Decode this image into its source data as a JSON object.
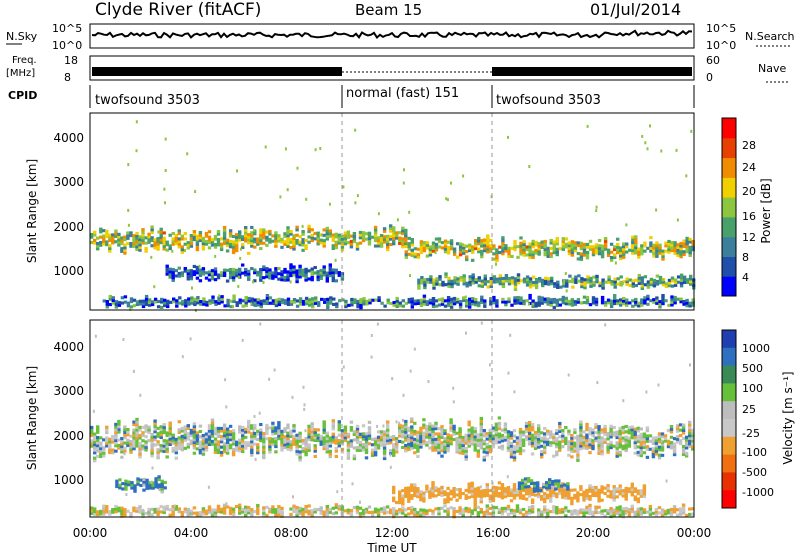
{
  "header": {
    "station": "Clyde River (fitACF)",
    "beam": "Beam 15",
    "date": "01/Jul/2014"
  },
  "noise_panel": {
    "left_label": "N.Sky",
    "right_label": "N.Search",
    "left_ticks": [
      "10^5",
      "10^0"
    ],
    "right_ticks": [
      "10^5",
      "10^0"
    ]
  },
  "freq_panel": {
    "left_label_1": "Freq.",
    "left_label_2": "[MHz]",
    "right_label": "Nave",
    "left_ticks": [
      "18",
      "8"
    ],
    "right_ticks": [
      "60",
      "0"
    ]
  },
  "cpid": {
    "label": "CPID",
    "segments": [
      {
        "name": "twofsound 3503",
        "start": 0,
        "end": 10
      },
      {
        "name": "normal (fast) 151",
        "start": 10,
        "end": 16
      },
      {
        "name": "twofsound 3503",
        "start": 16,
        "end": 24
      }
    ]
  },
  "colors": {
    "power": [
      "#0000ff",
      "#1f4fa8",
      "#3c7f9c",
      "#4aa06a",
      "#8cc63f",
      "#f0d000",
      "#f08c00",
      "#e84000",
      "#ff0000"
    ],
    "velocity": [
      "#1f3fb0",
      "#2f6fbf",
      "#3a8a56",
      "#66c03a",
      "#bdbdbd",
      "#c8c8c8",
      "#f0a030",
      "#f07010",
      "#e83000",
      "#ff0000"
    ]
  },
  "chart_data": [
    {
      "type": "heatmap",
      "title": "Power",
      "ylabel": "Slant Range [km]",
      "xlabel": "Time UT",
      "xlim": [
        0,
        24
      ],
      "ylim": [
        180,
        4600
      ],
      "x_ticks": [
        "00:00",
        "04:00",
        "08:00",
        "12:00",
        "16:00",
        "20:00",
        "00:00"
      ],
      "y_ticks": [
        1000,
        2000,
        3000,
        4000
      ],
      "colorbar_label": "Power [dB]",
      "colorbar_ticks": [
        4,
        8,
        12,
        16,
        20,
        24,
        28
      ],
      "bands": [
        {
          "t_start": 0.0,
          "t_end": 12.5,
          "r_center": 1750,
          "r_width": 450,
          "value": 18
        },
        {
          "t_start": 12.5,
          "t_end": 24.0,
          "r_center": 1550,
          "r_width": 400,
          "value": 18
        },
        {
          "t_start": 3.0,
          "t_end": 10.0,
          "r_center": 1000,
          "r_width": 300,
          "value": 8
        },
        {
          "t_start": 13.0,
          "t_end": 24.0,
          "r_center": 800,
          "r_width": 250,
          "value": 14
        },
        {
          "t_start": 0.5,
          "t_end": 24.0,
          "r_center": 350,
          "r_width": 200,
          "value": 10
        }
      ]
    },
    {
      "type": "heatmap",
      "title": "Velocity",
      "ylabel": "Slant Range [km]",
      "xlabel": "Time UT",
      "xlim": [
        0,
        24
      ],
      "ylim": [
        180,
        4600
      ],
      "x_ticks": [
        "00:00",
        "04:00",
        "08:00",
        "12:00",
        "16:00",
        "20:00",
        "00:00"
      ],
      "y_ticks": [
        1000,
        2000,
        3000,
        4000
      ],
      "colorbar_label": "Velocity [m s⁻¹]",
      "colorbar_ticks": [
        1000,
        500,
        100,
        25,
        -25,
        -100,
        -500,
        -1000
      ],
      "bands": [
        {
          "t_start": 0.0,
          "t_end": 24.0,
          "r_center": 1900,
          "r_width": 700,
          "value": 0
        },
        {
          "t_start": 12.0,
          "t_end": 22.0,
          "r_center": 700,
          "r_width": 350,
          "value": -200
        },
        {
          "t_start": 1.0,
          "t_end": 3.0,
          "r_center": 900,
          "r_width": 250,
          "value": 150
        },
        {
          "t_start": 17.0,
          "t_end": 19.0,
          "r_center": 900,
          "r_width": 250,
          "value": 150
        },
        {
          "t_start": 0.0,
          "t_end": 24.0,
          "r_center": 300,
          "r_width": 200,
          "value": -50
        }
      ]
    }
  ]
}
